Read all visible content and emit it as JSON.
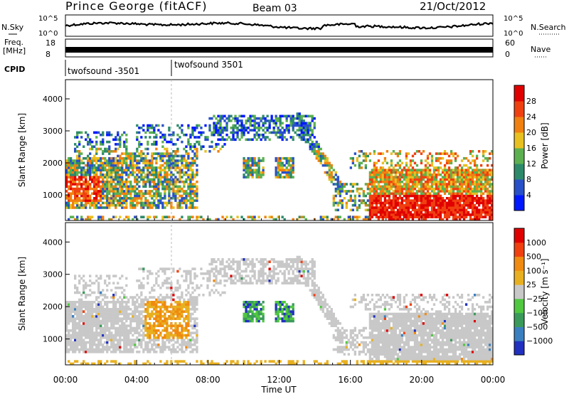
{
  "header": {
    "station": "Prince George (fitACF)",
    "beam": "Beam 03",
    "date": "21/Oct/2012"
  },
  "strip": {
    "nsky_label": "N.Sky",
    "nsearch_label": "N.Search",
    "noise_left_ticks": [
      "10^5",
      "10^0"
    ],
    "noise_right_ticks": [
      "10^5",
      "10^0"
    ],
    "freq_label_1": "Freq.",
    "freq_label_2": "[MHz]",
    "freq_left_ticks": [
      "18",
      "8"
    ],
    "nave_label": "Nave",
    "nave_right_ticks": [
      "60",
      "0"
    ],
    "cpid_label": "CPID",
    "cpid_segments": [
      {
        "label": "twofsound -3501",
        "start_hour": 0
      },
      {
        "label": "twofsound 3501",
        "start_hour": 6
      }
    ]
  },
  "chart_data": [
    {
      "type": "heatmap",
      "title": "",
      "xlabel": "Time UT",
      "ylabel": "Slant Range [km]",
      "xlim": [
        0,
        24
      ],
      "ylim": [
        200,
        4600
      ],
      "x_ticks": [
        "00:00",
        "04:00",
        "08:00",
        "12:00",
        "16:00",
        "20:00",
        "00:00"
      ],
      "y_ticks": [
        1000,
        2000,
        3000,
        4000
      ],
      "colorbar": {
        "label": "Power [dB]",
        "ticks": [
          "4",
          "8",
          "12",
          "16",
          "20",
          "24",
          "28"
        ],
        "colors": [
          "#0018ff",
          "#2850c8",
          "#2c8a6a",
          "#5cb050",
          "#e8c020",
          "#f08010",
          "#f04010",
          "#e00000"
        ]
      }
    },
    {
      "type": "heatmap",
      "title": "",
      "xlabel": "Time UT",
      "ylabel": "Slant Range [km]",
      "xlim": [
        0,
        24
      ],
      "ylim": [
        200,
        4600
      ],
      "x_ticks": [
        "00:00",
        "04:00",
        "08:00",
        "12:00",
        "16:00",
        "20:00",
        "00:00"
      ],
      "y_ticks": [
        1000,
        2000,
        3000,
        4000
      ],
      "colorbar": {
        "label": "Velocity [m s⁻¹]",
        "ticks": [
          "1000",
          "500",
          "100",
          "25",
          "−25",
          "−100",
          "−500",
          "−1000"
        ],
        "colors": [
          "#2030c0",
          "#3a80c0",
          "#3a9a5a",
          "#50c840",
          "#c8c8c8",
          "#e8b020",
          "#f08a10",
          "#f04010",
          "#e00000"
        ]
      }
    }
  ]
}
